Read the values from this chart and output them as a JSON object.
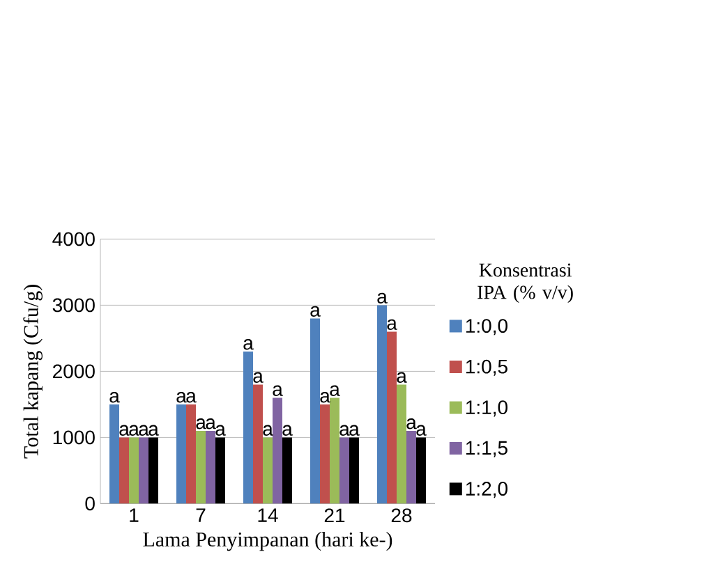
{
  "chart_data": {
    "type": "bar",
    "xlabel": "Lama Penyimpanan (hari ke-)",
    "ylabel": "Total kapang (Cfu/g)",
    "legend_title": "Konsentrasi IPA (% v/v)",
    "categories": [
      "1",
      "7",
      "14",
      "21",
      "28"
    ],
    "series": [
      {
        "name": "1:0,0",
        "color": "#4f81bd",
        "values": [
          1500,
          1500,
          2300,
          2800,
          3000
        ],
        "value_labels": [
          "a",
          "a",
          "a",
          "a",
          "a"
        ]
      },
      {
        "name": "1:0,5",
        "color": "#c0504d",
        "values": [
          1000,
          1500,
          1800,
          1500,
          2600
        ],
        "value_labels": [
          "a",
          "a",
          "a",
          "a",
          "a"
        ]
      },
      {
        "name": "1:1,0",
        "color": "#9bbb59",
        "values": [
          1000,
          1100,
          1000,
          1600,
          1800
        ],
        "value_labels": [
          "a",
          "a",
          "a",
          "a",
          "a"
        ]
      },
      {
        "name": "1:1,5",
        "color": "#8064a2",
        "values": [
          1000,
          1100,
          1600,
          1000,
          1100
        ],
        "value_labels": [
          "a",
          "a",
          "a",
          "a",
          "a"
        ]
      },
      {
        "name": "1:2,0",
        "color": "#000000",
        "values": [
          1000,
          1000,
          1000,
          1000,
          1000
        ],
        "value_labels": [
          "a",
          "a",
          "a",
          "a",
          "a"
        ]
      }
    ],
    "ylim": [
      0,
      4000
    ],
    "yticks": [
      0,
      1000,
      2000,
      3000,
      4000
    ],
    "grid": "y",
    "legend": "right"
  }
}
